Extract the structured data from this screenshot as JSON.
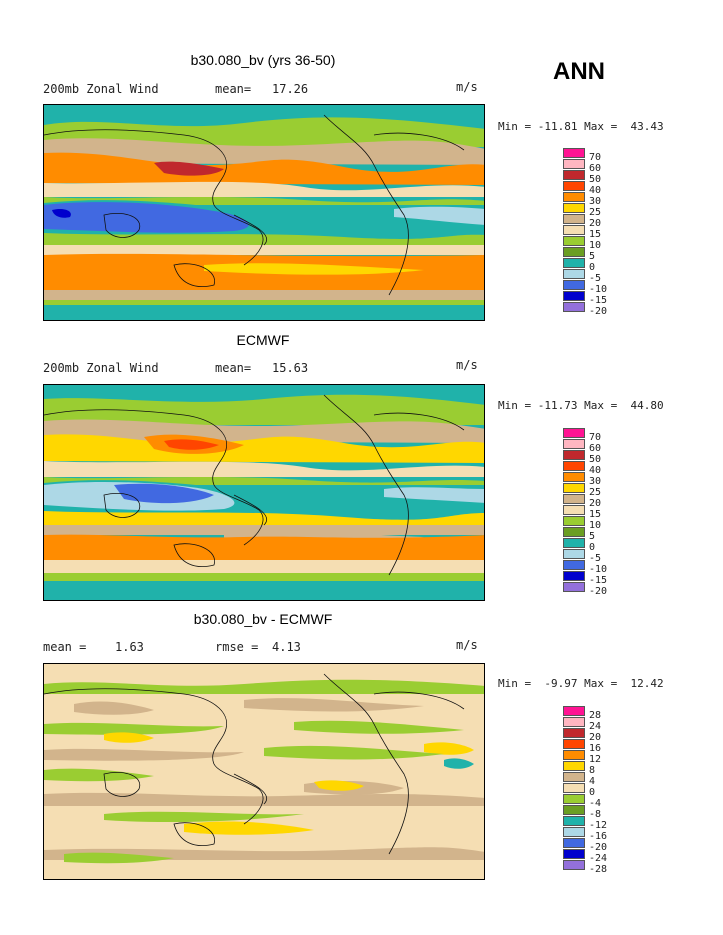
{
  "season": "ANN",
  "panels": [
    {
      "title": "b30.080_bv (yrs 36-50)",
      "left_label": "200mb Zonal Wind",
      "stat1_label": "mean=",
      "stat1_value": "17.26",
      "stat2_label": "",
      "stat2_value": "",
      "units": "m/s",
      "min_max": "Min = -11.81 Max =  43.43",
      "legend_labels": [
        "70",
        "60",
        "50",
        "40",
        "30",
        "25",
        "20",
        "15",
        "10",
        "5",
        "0",
        "-5",
        "-10",
        "-15",
        "-20"
      ]
    },
    {
      "title": "ECMWF",
      "left_label": "200mb Zonal Wind",
      "stat1_label": "mean=",
      "stat1_value": "15.63",
      "stat2_label": "",
      "stat2_value": "",
      "units": "m/s",
      "min_max": "Min = -11.73 Max =  44.80",
      "legend_labels": [
        "70",
        "60",
        "50",
        "40",
        "30",
        "25",
        "20",
        "15",
        "10",
        "5",
        "0",
        "-5",
        "-10",
        "-15",
        "-20"
      ]
    },
    {
      "title": "b30.080_bv - ECMWF",
      "left_label": "mean =",
      "stat1_label": "",
      "stat1_value": "1.63",
      "stat2_label": "rmse =",
      "stat2_value": "4.13",
      "units": "m/s",
      "min_max": "Min =  -9.97 Max =  12.42",
      "legend_labels": [
        "28",
        "24",
        "20",
        "16",
        "12",
        "8",
        "4",
        "0",
        "-4",
        "-8",
        "-12",
        "-16",
        "-20",
        "-24",
        "-28"
      ]
    }
  ],
  "legend_colors": [
    "#ff1493",
    "#ffb6c1",
    "#c0282d",
    "#ff4500",
    "#ff8c00",
    "#ffd700",
    "#d2b48c",
    "#f5deb3",
    "#9acd32",
    "#6b9e23",
    "#20b2aa",
    "#add8e6",
    "#4169e1",
    "#0000cd",
    "#9370db"
  ]
}
